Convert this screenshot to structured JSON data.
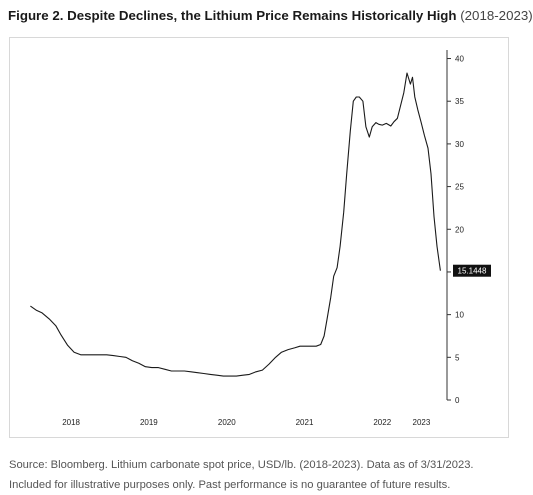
{
  "figure": {
    "title": "Figure 2. Despite Declines, the Lithium Price Remains Historically High",
    "year_span": "(2018-2023)",
    "caption": "Source: Bloomberg. Lithium carbonate spot price, USD/lb. (2018-2023). Data as of 3/31/2023. Included for illustrative purposes only. Past performance is no guarantee of future results."
  },
  "colors": {
    "line": "#1a1a1a",
    "axis": "#333333",
    "last_value_bg": "#111111",
    "last_value_text": "#ffffff",
    "frame": "#d8d8d8"
  },
  "chart_data": {
    "type": "line",
    "title": "Figure 2. Despite Declines, the Lithium Price Remains Historically High (2018-2023)",
    "xlabel": "",
    "ylabel": "",
    "x_axis": "date",
    "x_tick_labels": [
      "2018",
      "2019",
      "2020",
      "2021",
      "2022",
      "2023"
    ],
    "x_tick_dates": [
      "2018-07-01",
      "2019-07-01",
      "2020-07-01",
      "2021-07-01",
      "2022-07-01",
      "2023-01-01"
    ],
    "y_axis_side": "right",
    "y_ticks": [
      0,
      5,
      10,
      15,
      20,
      25,
      30,
      35,
      40
    ],
    "ylim": [
      0,
      41
    ],
    "xlim": [
      "2017-12-20",
      "2023-05-01"
    ],
    "grid": false,
    "legend": "none",
    "last_value_label": "15.1448",
    "series": [
      {
        "x": [
          "2017-12-22",
          "2018-01-20",
          "2018-02-15",
          "2018-03-20",
          "2018-04-20",
          "2018-05-15",
          "2018-06-15",
          "2018-07-15",
          "2018-08-15",
          "2018-09-15",
          "2018-10-15",
          "2018-11-15",
          "2018-12-15",
          "2019-01-15",
          "2019-02-15",
          "2019-03-15",
          "2019-04-15",
          "2019-05-15",
          "2019-06-15",
          "2019-07-15",
          "2019-08-15",
          "2019-09-15",
          "2019-10-15",
          "2019-11-15",
          "2019-12-15",
          "2020-01-15",
          "2020-02-15",
          "2020-03-15",
          "2020-04-15",
          "2020-05-15",
          "2020-06-15",
          "2020-07-15",
          "2020-08-15",
          "2020-09-15",
          "2020-10-15",
          "2020-11-15",
          "2020-12-15",
          "2021-01-15",
          "2021-02-15",
          "2021-03-15",
          "2021-04-15",
          "2021-05-15",
          "2021-06-10",
          "2021-07-05",
          "2021-08-01",
          "2021-08-25",
          "2021-09-15",
          "2021-10-01",
          "2021-10-15",
          "2021-11-01",
          "2021-11-15",
          "2021-12-01",
          "2021-12-15",
          "2022-01-01",
          "2022-01-15",
          "2022-02-01",
          "2022-02-15",
          "2022-03-01",
          "2022-03-15",
          "2022-04-01",
          "2022-04-15",
          "2022-05-01",
          "2022-05-15",
          "2022-06-01",
          "2022-06-15",
          "2022-07-01",
          "2022-07-20",
          "2022-08-10",
          "2022-08-25",
          "2022-09-10",
          "2022-09-25",
          "2022-10-10",
          "2022-10-25",
          "2022-11-10",
          "2022-11-20",
          "2022-12-01",
          "2022-12-15",
          "2022-12-31",
          "2023-01-15",
          "2023-02-01",
          "2023-02-15",
          "2023-03-01",
          "2023-03-15",
          "2023-03-31"
        ],
        "values": [
          11.0,
          10.5,
          10.2,
          9.5,
          8.7,
          7.6,
          6.4,
          5.6,
          5.3,
          5.3,
          5.3,
          5.3,
          5.3,
          5.2,
          5.1,
          5.0,
          4.6,
          4.3,
          3.9,
          3.8,
          3.8,
          3.6,
          3.4,
          3.4,
          3.4,
          3.3,
          3.2,
          3.1,
          3.0,
          2.9,
          2.8,
          2.8,
          2.8,
          2.9,
          3.0,
          3.3,
          3.5,
          4.2,
          5.0,
          5.6,
          5.9,
          6.1,
          6.3,
          6.3,
          6.3,
          6.3,
          6.5,
          7.5,
          9.5,
          12.0,
          14.5,
          15.5,
          18.0,
          22.0,
          26.5,
          31.5,
          35.0,
          35.5,
          35.5,
          35.0,
          32.0,
          30.8,
          32.0,
          32.5,
          32.3,
          32.2,
          32.4,
          32.1,
          32.6,
          33.0,
          34.5,
          36.0,
          38.3,
          37.0,
          37.8,
          35.5,
          34.0,
          32.5,
          31.0,
          29.5,
          26.5,
          21.5,
          18.0,
          15.1448
        ]
      }
    ]
  }
}
